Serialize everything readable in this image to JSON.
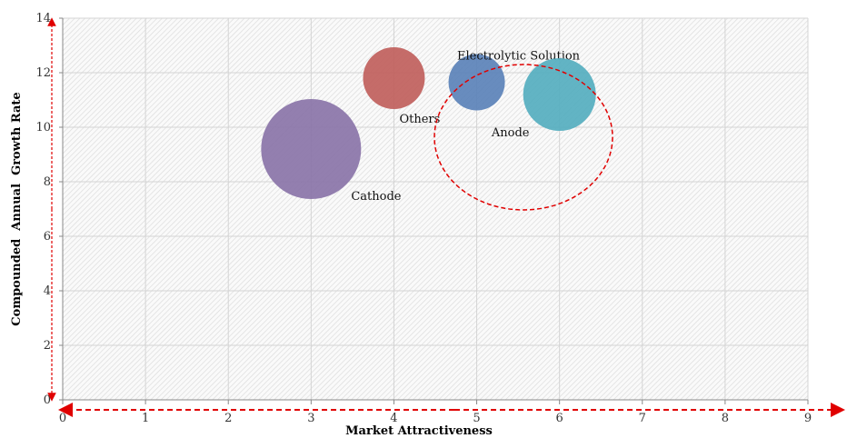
{
  "chart_data": {
    "type": "scatter",
    "subtype": "bubble",
    "title": "",
    "xlabel": "Market Attractiveness",
    "ylabel": "Compounded  Annual  Growth Rate",
    "xlim": [
      0,
      9
    ],
    "ylim": [
      0,
      14
    ],
    "xticks": [
      0,
      1,
      2,
      3,
      4,
      5,
      6,
      7,
      8,
      9
    ],
    "yticks": [
      0,
      2,
      4,
      6,
      8,
      10,
      12,
      14
    ],
    "grid": true,
    "legend": "none",
    "series": [
      {
        "name": "Cathode",
        "x": 3.0,
        "y": 9.2,
        "size": 55,
        "color": "#8a74a8"
      },
      {
        "name": "Others",
        "x": 4.0,
        "y": 11.8,
        "size": 34,
        "color": "#c0605c"
      },
      {
        "name": "Electrolytic Solution",
        "x": 5.0,
        "y": 11.65,
        "size": 31,
        "color": "#5b82b8"
      },
      {
        "name": "Anode",
        "x": 6.0,
        "y": 11.2,
        "size": 40,
        "color": "#55aebf"
      }
    ],
    "highlight": {
      "shape": "dashed-ellipse",
      "color": "#e00000",
      "around": "Anode"
    },
    "axis_arrow_color": "#e00000"
  }
}
